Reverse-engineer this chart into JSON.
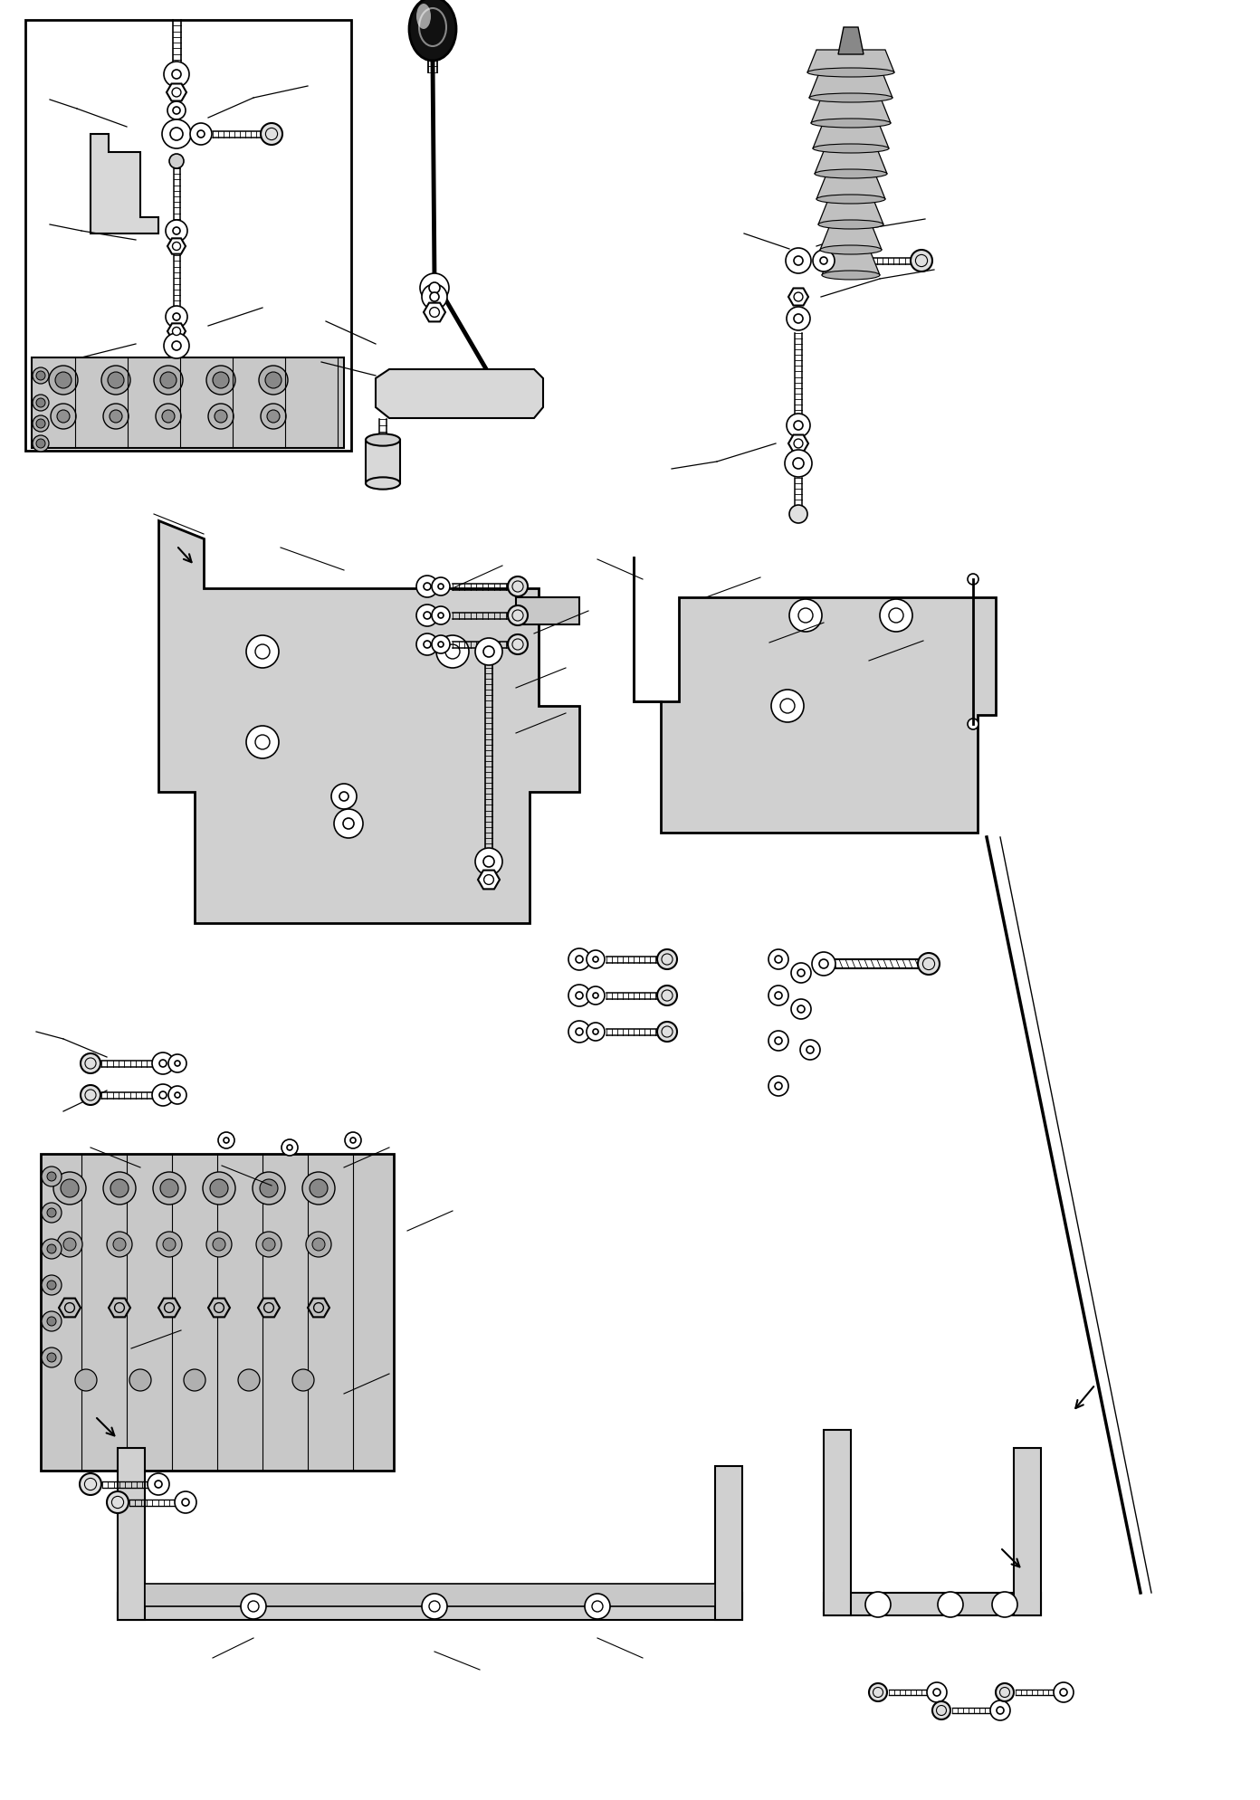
{
  "background_color": "#ffffff",
  "line_color": "#000000",
  "figure_width": 13.92,
  "figure_height": 19.89,
  "dpi": 100
}
